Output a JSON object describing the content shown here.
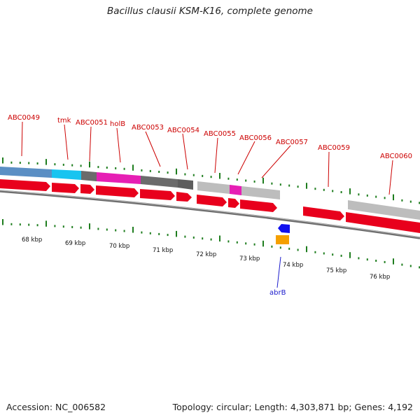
{
  "title": "Bacillus clausii KSM-K16, complete genome",
  "accession": "Accession: NC_006582",
  "summary": "Topology: circular; Length: 4,303,871 bp; Genes: 4,192",
  "colors": {
    "forward_feature": "#e8001c",
    "label_red": "#cc0000",
    "label_blue": "#1a1acc",
    "tick_green": "#1e7d1e",
    "backbone": "#888888",
    "cog_blue": "#5b8fc4",
    "cog_cyan": "#18c4f0",
    "cog_dark": "#6b6b6b",
    "cog_magenta": "#e61fb4",
    "cog_light": "#bdbdbd",
    "reverse_blue": "#1010ee",
    "reverse_orange": "#f5a000"
  },
  "gene_labels": [
    "ABC0049",
    "tmk",
    "ABC0051",
    "holB",
    "ABC0053",
    "ABC0054",
    "ABC0055",
    "ABC0056",
    "ABC0057",
    "ABC0059",
    "ABC0060"
  ],
  "reverse_labels": [
    "abrB"
  ],
  "kbp_labels": [
    "68 kbp",
    "69 kbp",
    "70 kbp",
    "71 kbp",
    "72 kbp",
    "73 kbp",
    "74 kbp",
    "75 kbp",
    "76 kbp"
  ]
}
